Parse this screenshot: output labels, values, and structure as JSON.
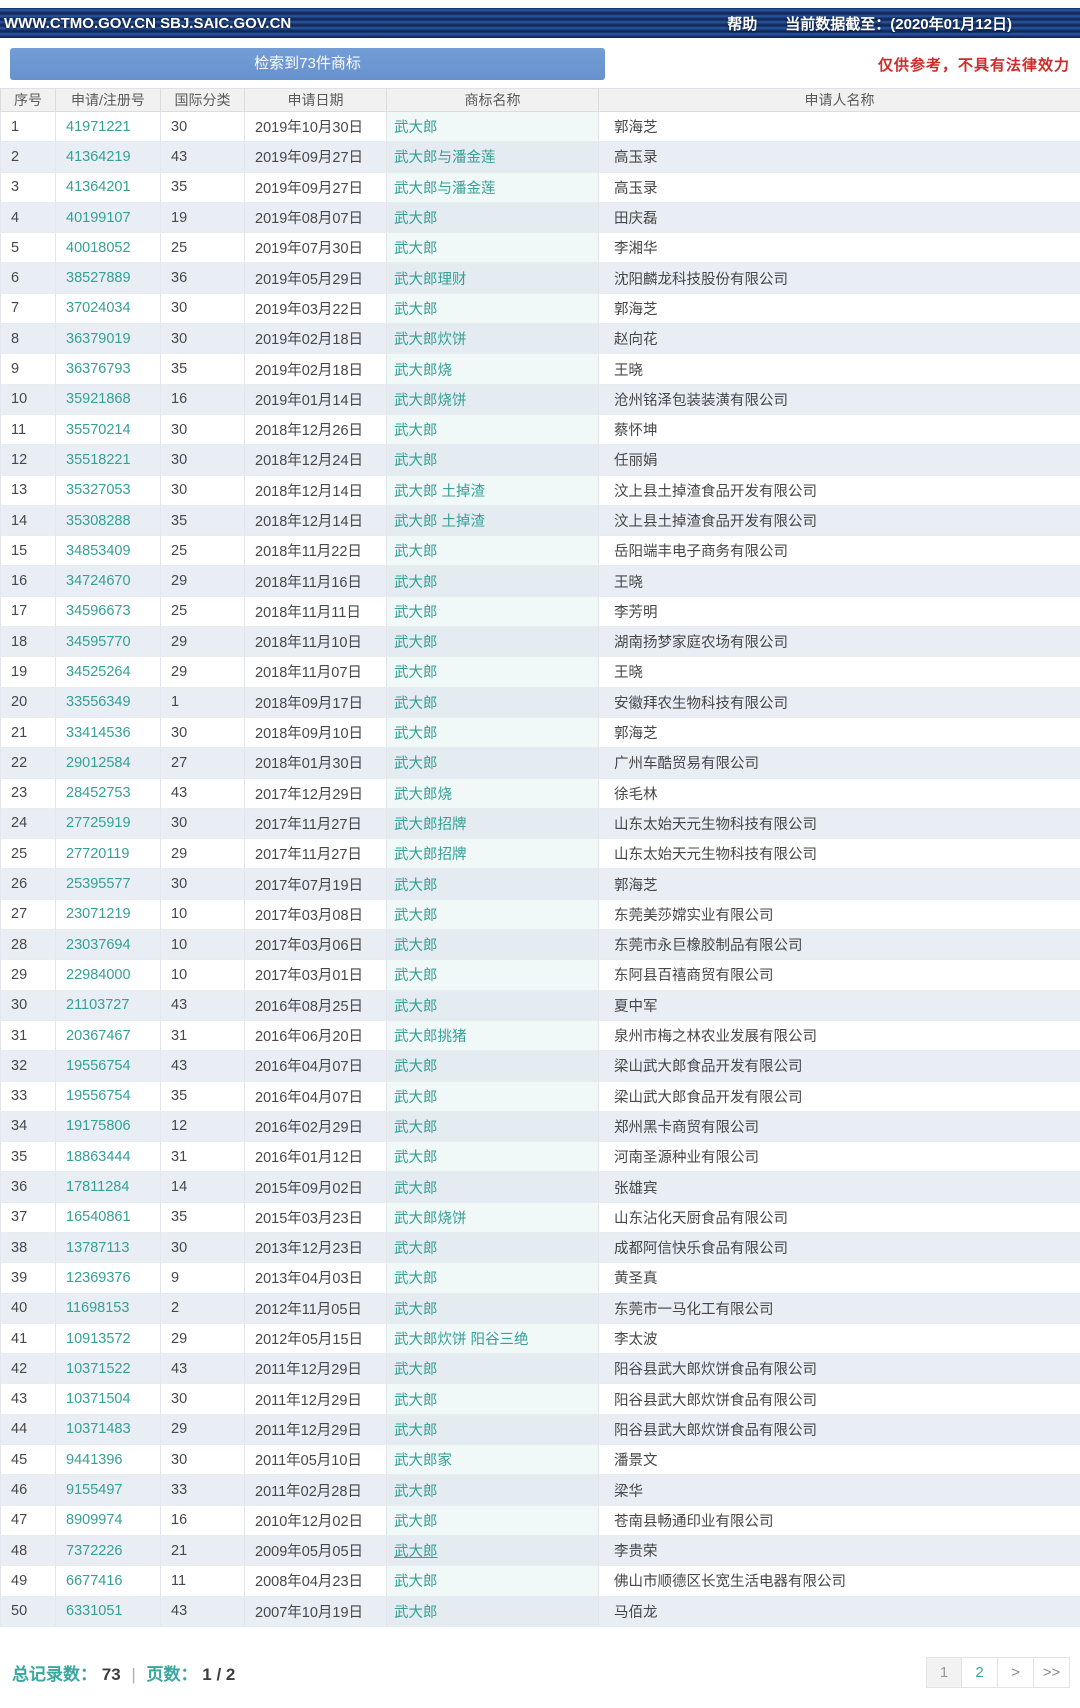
{
  "header": {
    "site_text": "WWW.CTMO.GOV.CN SBJ.SAIC.GOV.CN",
    "help_label": "帮助",
    "data_cutoff": "当前数据截至：(2020年01月12日)"
  },
  "toolbar": {
    "result_button_label": "检索到73件商标",
    "disclaimer": "仅供参考，不具有法律效力"
  },
  "colors": {
    "accent_teal": "#35a096",
    "navbar_navy": "#16336b",
    "button_blue": "#6b97d3",
    "warning_red": "#cf2b2b"
  },
  "table": {
    "columns": [
      "序号",
      "申请/注册号",
      "国际分类",
      "申请日期",
      "商标名称",
      "申请人名称"
    ],
    "rows": [
      {
        "no": "1",
        "reg_no": "41971221",
        "cls": "30",
        "date": "2019年10月30日",
        "name": "武大郎",
        "applicant": "郭海芝"
      },
      {
        "no": "2",
        "reg_no": "41364219",
        "cls": "43",
        "date": "2019年09月27日",
        "name": "武大郎与潘金莲",
        "applicant": "高玉录"
      },
      {
        "no": "3",
        "reg_no": "41364201",
        "cls": "35",
        "date": "2019年09月27日",
        "name": "武大郎与潘金莲",
        "applicant": "高玉录"
      },
      {
        "no": "4",
        "reg_no": "40199107",
        "cls": "19",
        "date": "2019年08月07日",
        "name": "武大郎",
        "applicant": "田庆磊"
      },
      {
        "no": "5",
        "reg_no": "40018052",
        "cls": "25",
        "date": "2019年07月30日",
        "name": "武大郎",
        "applicant": "李湘华"
      },
      {
        "no": "6",
        "reg_no": "38527889",
        "cls": "36",
        "date": "2019年05月29日",
        "name": "武大郎理财",
        "applicant": "沈阳麟龙科技股份有限公司"
      },
      {
        "no": "7",
        "reg_no": "37024034",
        "cls": "30",
        "date": "2019年03月22日",
        "name": "武大郎",
        "applicant": "郭海芝"
      },
      {
        "no": "8",
        "reg_no": "36379019",
        "cls": "30",
        "date": "2019年02月18日",
        "name": "武大郎炊饼",
        "applicant": "赵向花"
      },
      {
        "no": "9",
        "reg_no": "36376793",
        "cls": "35",
        "date": "2019年02月18日",
        "name": "武大郎烧",
        "applicant": "王晓"
      },
      {
        "no": "10",
        "reg_no": "35921868",
        "cls": "16",
        "date": "2019年01月14日",
        "name": "武大郎烧饼",
        "applicant": "沧州铭泽包装装潢有限公司"
      },
      {
        "no": "11",
        "reg_no": "35570214",
        "cls": "30",
        "date": "2018年12月26日",
        "name": "武大郎",
        "applicant": "蔡怀坤"
      },
      {
        "no": "12",
        "reg_no": "35518221",
        "cls": "30",
        "date": "2018年12月24日",
        "name": "武大郎",
        "applicant": "任丽娟"
      },
      {
        "no": "13",
        "reg_no": "35327053",
        "cls": "30",
        "date": "2018年12月14日",
        "name": "武大郎 土掉渣",
        "applicant": "汶上县土掉渣食品开发有限公司"
      },
      {
        "no": "14",
        "reg_no": "35308288",
        "cls": "35",
        "date": "2018年12月14日",
        "name": "武大郎 土掉渣",
        "applicant": "汶上县土掉渣食品开发有限公司"
      },
      {
        "no": "15",
        "reg_no": "34853409",
        "cls": "25",
        "date": "2018年11月22日",
        "name": "武大郎",
        "applicant": "岳阳端丰电子商务有限公司"
      },
      {
        "no": "16",
        "reg_no": "34724670",
        "cls": "29",
        "date": "2018年11月16日",
        "name": "武大郎",
        "applicant": "王晓"
      },
      {
        "no": "17",
        "reg_no": "34596673",
        "cls": "25",
        "date": "2018年11月11日",
        "name": "武大郎",
        "applicant": "李芳明"
      },
      {
        "no": "18",
        "reg_no": "34595770",
        "cls": "29",
        "date": "2018年11月10日",
        "name": "武大郎",
        "applicant": "湖南扬梦家庭农场有限公司"
      },
      {
        "no": "19",
        "reg_no": "34525264",
        "cls": "29",
        "date": "2018年11月07日",
        "name": "武大郎",
        "applicant": "王晓"
      },
      {
        "no": "20",
        "reg_no": "33556349",
        "cls": "1",
        "date": "2018年09月17日",
        "name": "武大郎",
        "applicant": "安徽拜农生物科技有限公司"
      },
      {
        "no": "21",
        "reg_no": "33414536",
        "cls": "30",
        "date": "2018年09月10日",
        "name": "武大郎",
        "applicant": "郭海芝"
      },
      {
        "no": "22",
        "reg_no": "29012584",
        "cls": "27",
        "date": "2018年01月30日",
        "name": "武大郎",
        "applicant": "广州车酷贸易有限公司"
      },
      {
        "no": "23",
        "reg_no": "28452753",
        "cls": "43",
        "date": "2017年12月29日",
        "name": "武大郎烧",
        "applicant": "徐毛林"
      },
      {
        "no": "24",
        "reg_no": "27725919",
        "cls": "30",
        "date": "2017年11月27日",
        "name": "武大郎招牌",
        "applicant": "山东太始天元生物科技有限公司"
      },
      {
        "no": "25",
        "reg_no": "27720119",
        "cls": "29",
        "date": "2017年11月27日",
        "name": "武大郎招牌",
        "applicant": "山东太始天元生物科技有限公司"
      },
      {
        "no": "26",
        "reg_no": "25395577",
        "cls": "30",
        "date": "2017年07月19日",
        "name": "武大郎",
        "applicant": "郭海芝"
      },
      {
        "no": "27",
        "reg_no": "23071219",
        "cls": "10",
        "date": "2017年03月08日",
        "name": "武大郎",
        "applicant": "东莞美莎嫦实业有限公司"
      },
      {
        "no": "28",
        "reg_no": "23037694",
        "cls": "10",
        "date": "2017年03月06日",
        "name": "武大郎",
        "applicant": "东莞市永巨橡胶制品有限公司"
      },
      {
        "no": "29",
        "reg_no": "22984000",
        "cls": "10",
        "date": "2017年03月01日",
        "name": "武大郎",
        "applicant": "东阿县百禧商贸有限公司"
      },
      {
        "no": "30",
        "reg_no": "21103727",
        "cls": "43",
        "date": "2016年08月25日",
        "name": "武大郎",
        "applicant": "夏中军"
      },
      {
        "no": "31",
        "reg_no": "20367467",
        "cls": "31",
        "date": "2016年06月20日",
        "name": "武大郎挑猪",
        "applicant": "泉州市梅之林农业发展有限公司"
      },
      {
        "no": "32",
        "reg_no": "19556754",
        "cls": "43",
        "date": "2016年04月07日",
        "name": "武大郎",
        "applicant": "梁山武大郎食品开发有限公司"
      },
      {
        "no": "33",
        "reg_no": "19556754",
        "cls": "35",
        "date": "2016年04月07日",
        "name": "武大郎",
        "applicant": "梁山武大郎食品开发有限公司"
      },
      {
        "no": "34",
        "reg_no": "19175806",
        "cls": "12",
        "date": "2016年02月29日",
        "name": "武大郎",
        "applicant": "郑州黑卡商贸有限公司"
      },
      {
        "no": "35",
        "reg_no": "18863444",
        "cls": "31",
        "date": "2016年01月12日",
        "name": "武大郎",
        "applicant": "河南圣源种业有限公司"
      },
      {
        "no": "36",
        "reg_no": "17811284",
        "cls": "14",
        "date": "2015年09月02日",
        "name": "武大郎",
        "applicant": "张雄宾"
      },
      {
        "no": "37",
        "reg_no": "16540861",
        "cls": "35",
        "date": "2015年03月23日",
        "name": "武大郎烧饼",
        "applicant": "山东沾化天厨食品有限公司"
      },
      {
        "no": "38",
        "reg_no": "13787113",
        "cls": "30",
        "date": "2013年12月23日",
        "name": "武大郎",
        "applicant": "成都阿信快乐食品有限公司"
      },
      {
        "no": "39",
        "reg_no": "12369376",
        "cls": "9",
        "date": "2013年04月03日",
        "name": "武大郎",
        "applicant": "黄圣真"
      },
      {
        "no": "40",
        "reg_no": "11698153",
        "cls": "2",
        "date": "2012年11月05日",
        "name": "武大郎",
        "applicant": "东莞市一马化工有限公司"
      },
      {
        "no": "41",
        "reg_no": "10913572",
        "cls": "29",
        "date": "2012年05月15日",
        "name": "武大郎炊饼 阳谷三绝",
        "applicant": "李太波"
      },
      {
        "no": "42",
        "reg_no": "10371522",
        "cls": "43",
        "date": "2011年12月29日",
        "name": "武大郎",
        "applicant": "阳谷县武大郎炊饼食品有限公司"
      },
      {
        "no": "43",
        "reg_no": "10371504",
        "cls": "30",
        "date": "2011年12月29日",
        "name": "武大郎",
        "applicant": "阳谷县武大郎炊饼食品有限公司"
      },
      {
        "no": "44",
        "reg_no": "10371483",
        "cls": "29",
        "date": "2011年12月29日",
        "name": "武大郎",
        "applicant": "阳谷县武大郎炊饼食品有限公司"
      },
      {
        "no": "45",
        "reg_no": "9441396",
        "cls": "30",
        "date": "2011年05月10日",
        "name": "武大郎家",
        "applicant": "潘景文"
      },
      {
        "no": "46",
        "reg_no": "9155497",
        "cls": "33",
        "date": "2011年02月28日",
        "name": "武大郎",
        "applicant": "梁华"
      },
      {
        "no": "47",
        "reg_no": "8909974",
        "cls": "16",
        "date": "2010年12月02日",
        "name": "武大郎",
        "applicant": "苍南县畅通印业有限公司"
      },
      {
        "no": "48",
        "reg_no": "7372226",
        "cls": "21",
        "date": "2009年05月05日",
        "name": "武大郎",
        "applicant": "李贵荣",
        "underline": true
      },
      {
        "no": "49",
        "reg_no": "6677416",
        "cls": "11",
        "date": "2008年04月23日",
        "name": "武大郎",
        "applicant": "佛山市顺德区长宽生活电器有限公司"
      },
      {
        "no": "50",
        "reg_no": "6331051",
        "cls": "43",
        "date": "2007年10月19日",
        "name": "武大郎",
        "applicant": "马佰龙"
      }
    ]
  },
  "footer": {
    "total_label": "总记录数：",
    "total_value": "73",
    "separator": "|",
    "pages_label": "页数：",
    "pages_value": "1 / 2",
    "pagination": {
      "page1": "1",
      "page2": "2",
      "next": ">",
      "last": ">>"
    }
  }
}
